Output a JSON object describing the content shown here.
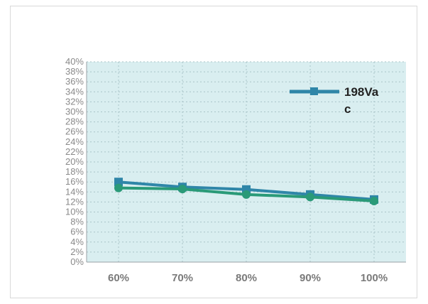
{
  "chart_data": {
    "type": "line",
    "categories": [
      "60%",
      "70%",
      "80%",
      "90%",
      "100%"
    ],
    "yticks": [
      "0%",
      "2%",
      "4%",
      "6%",
      "8%",
      "10%",
      "12%",
      "14%",
      "16%",
      "18%",
      "20%",
      "22%",
      "24%",
      "26%",
      "28%",
      "30%",
      "32%",
      "34%",
      "36%",
      "38%",
      "40%"
    ],
    "ylim": [
      0,
      40
    ],
    "grid": true,
    "legend_position": "top-right",
    "series": [
      {
        "name": "198Vac",
        "color": "#2f86a8",
        "marker": "square",
        "values": [
          16.0,
          15.0,
          14.5,
          13.5,
          12.5
        ]
      },
      {
        "name": "",
        "color": "#2a9a78",
        "marker": "circle",
        "values": [
          14.8,
          14.6,
          13.5,
          13.0,
          12.2
        ]
      }
    ],
    "legend": {
      "line1": "198Va",
      "line2": "c"
    },
    "colors": {
      "plot_bg": "#d9eef0",
      "grid": "#a9c4c8",
      "axis": "#9aa0a6"
    }
  }
}
